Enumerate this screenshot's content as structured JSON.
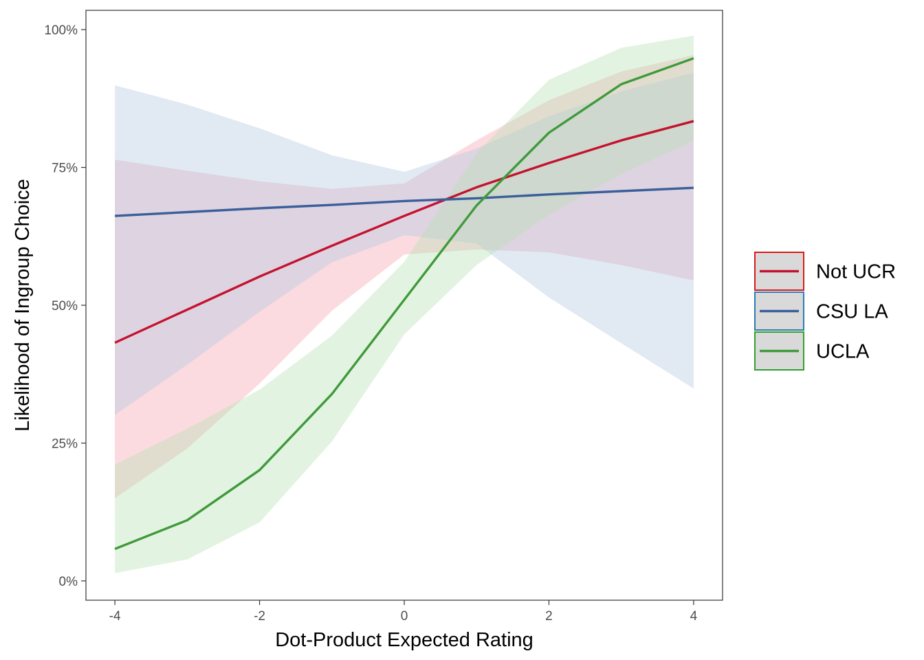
{
  "chart_data": {
    "type": "line",
    "title": "",
    "xlabel": "Dot-Product Expected Rating",
    "ylabel": "Likelihood of Ingroup Choice",
    "xlim": [
      -4.4,
      4.4
    ],
    "ylim": [
      -0.035,
      1.035
    ],
    "x_ticks": [
      -4,
      -2,
      0,
      2,
      4
    ],
    "x_tick_labels": [
      "-4",
      "-2",
      "0",
      "2",
      "4"
    ],
    "y_ticks": [
      0,
      0.25,
      0.5,
      0.75,
      1.0
    ],
    "y_tick_labels": [
      "0%",
      "25%",
      "50%",
      "75%",
      "100%"
    ],
    "grid": false,
    "legend_position": "right",
    "x": [
      -4,
      -3,
      -2,
      -1,
      0,
      1,
      2,
      3,
      4
    ],
    "series": [
      {
        "name": "Not UCR",
        "line_color": "#c4122f",
        "fill_color": "#f4a6ae",
        "legend_border": "#d7191c",
        "values": [
          0.432,
          0.492,
          0.552,
          0.608,
          0.662,
          0.714,
          0.758,
          0.799,
          0.834
        ],
        "lower": [
          0.15,
          0.24,
          0.358,
          0.49,
          0.592,
          0.601,
          0.596,
          0.573,
          0.545
        ],
        "upper": [
          0.764,
          0.744,
          0.725,
          0.711,
          0.721,
          0.799,
          0.872,
          0.924,
          0.954
        ]
      },
      {
        "name": "CSU LA",
        "line_color": "#3a5f9a",
        "fill_color": "#b3c7e0",
        "legend_border": "#2c7bb6",
        "values": [
          0.662,
          0.669,
          0.676,
          0.682,
          0.689,
          0.694,
          0.701,
          0.707,
          0.713
        ],
        "lower": [
          0.301,
          0.392,
          0.488,
          0.578,
          0.627,
          0.612,
          0.514,
          0.431,
          0.349
        ],
        "upper": [
          0.899,
          0.864,
          0.821,
          0.772,
          0.742,
          0.784,
          0.843,
          0.888,
          0.922
        ]
      },
      {
        "name": "UCLA",
        "line_color": "#3f9a3a",
        "fill_color": "#b9e0b4",
        "legend_border": "#33a02c",
        "values": [
          0.058,
          0.11,
          0.201,
          0.339,
          0.51,
          0.681,
          0.813,
          0.901,
          0.948
        ],
        "lower": [
          0.014,
          0.039,
          0.106,
          0.253,
          0.447,
          0.573,
          0.664,
          0.738,
          0.798
        ],
        "upper": [
          0.211,
          0.276,
          0.347,
          0.445,
          0.579,
          0.776,
          0.909,
          0.967,
          0.989
        ]
      }
    ]
  }
}
